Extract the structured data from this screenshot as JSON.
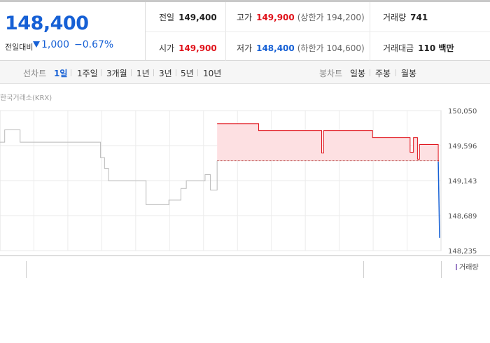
{
  "summary": {
    "current_price": "148,400",
    "change_label": "전일대비",
    "change_value": "1,000",
    "change_pct": "−0.67%",
    "direction": "down"
  },
  "stats": {
    "prev_close": {
      "label": "전일",
      "value": "149,400"
    },
    "high": {
      "label": "고가",
      "value": "149,900",
      "sub": "(상한가 194,200)"
    },
    "volume": {
      "label": "거래량",
      "value": "741"
    },
    "open": {
      "label": "시가",
      "value": "149,900"
    },
    "low": {
      "label": "저가",
      "value": "148,400",
      "sub": "(하한가 104,600)"
    },
    "amount": {
      "label": "거래대금",
      "value": "110 백만"
    }
  },
  "tabs": {
    "line_label": "선차트",
    "line_items": [
      "1일",
      "1주일",
      "3개월",
      "1년",
      "3년",
      "5년",
      "10년"
    ],
    "active_line": "1일",
    "candle_label": "봉차트",
    "candle_items": [
      "일봉",
      "주봉",
      "월봉"
    ]
  },
  "source": "한국거래소(KRX)",
  "volume_legend": "거래량",
  "colors": {
    "accent_blue": "#1660d5",
    "accent_red": "#e0131b",
    "fill_red": "#fde0e2"
  },
  "chart_data": {
    "type": "line",
    "y_ticks": [
      "150,050",
      "149,596",
      "149,143",
      "148,689",
      "148,235"
    ],
    "ylim": [
      148235,
      150050
    ],
    "prev_close": 149400,
    "previous_day_series": [
      [
        0.0,
        149640
      ],
      [
        0.7,
        149640
      ],
      [
        0.7,
        149800
      ],
      [
        3.0,
        149800
      ],
      [
        3.0,
        149640
      ],
      [
        15.0,
        149640
      ],
      [
        15.0,
        149440
      ],
      [
        15.6,
        149440
      ],
      [
        15.6,
        149300
      ],
      [
        16.2,
        149300
      ],
      [
        16.2,
        149140
      ],
      [
        21.8,
        149140
      ],
      [
        21.8,
        148830
      ],
      [
        25.2,
        148830
      ],
      [
        25.2,
        148890
      ],
      [
        27.0,
        148890
      ],
      [
        27.0,
        149040
      ],
      [
        27.8,
        149040
      ],
      [
        27.8,
        149140
      ],
      [
        30.6,
        149140
      ],
      [
        30.6,
        149220
      ],
      [
        31.4,
        149220
      ],
      [
        31.4,
        149020
      ],
      [
        32.4,
        149020
      ],
      [
        32.4,
        149400
      ]
    ],
    "today_series": [
      [
        32.4,
        149880
      ],
      [
        38.6,
        149880
      ],
      [
        38.6,
        149790
      ],
      [
        48.0,
        149790
      ],
      [
        48.0,
        149500
      ],
      [
        48.3,
        149500
      ],
      [
        48.3,
        149790
      ],
      [
        55.6,
        149790
      ],
      [
        55.6,
        149700
      ],
      [
        61.2,
        149700
      ],
      [
        61.2,
        149510
      ],
      [
        61.7,
        149510
      ],
      [
        61.7,
        149700
      ],
      [
        62.3,
        149700
      ],
      [
        62.3,
        149420
      ],
      [
        62.6,
        149420
      ],
      [
        62.6,
        149610
      ],
      [
        65.4,
        149610
      ],
      [
        65.4,
        149390
      ],
      [
        65.6,
        148400
      ]
    ],
    "x_grid_count": 13
  }
}
